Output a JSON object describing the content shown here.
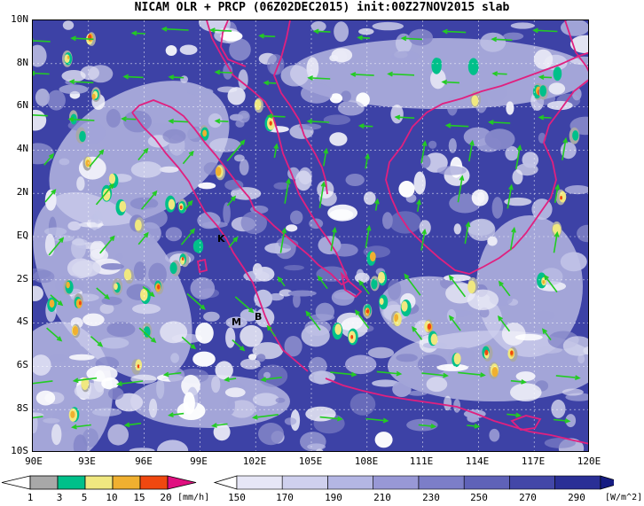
{
  "title": "NICAM OLR + PRCP (06Z02DEC2015) init:00Z27NOV2015 slab",
  "map": {
    "lon_range": [
      90,
      120
    ],
    "lat_range": [
      -10,
      10
    ],
    "lat_labels": [
      "10N",
      "8N",
      "6N",
      "4N",
      "2N",
      "EQ",
      "2S",
      "4S",
      "6S",
      "8S",
      "10S"
    ],
    "lon_labels": [
      "90E",
      "93E",
      "96E",
      "99E",
      "102E",
      "105E",
      "108E",
      "111E",
      "114E",
      "117E",
      "120E"
    ],
    "place_markers": [
      "K",
      "M",
      "B"
    ],
    "colors": {
      "coastline": "#e0207f",
      "wind_vectors": "#22cc22",
      "background_cloud": "#ffffff"
    }
  },
  "precip_legend": {
    "labels": [
      "1",
      "3",
      "5",
      "10",
      "15",
      "20"
    ],
    "unit": "[mm/h]",
    "colors": [
      "#a8a8a8",
      "#00c08a",
      "#f0e880",
      "#f0b030",
      "#f04810",
      "#e01080"
    ]
  },
  "olr_legend": {
    "labels": [
      "150",
      "170",
      "190",
      "210",
      "230",
      "250",
      "270",
      "290"
    ],
    "unit": "[W/m^2]",
    "colors": [
      "#ffffff",
      "#e6e6f6",
      "#cfd0ee",
      "#b4b6e4",
      "#9898d6",
      "#7c7ec8",
      "#5f62b8",
      "#4347a8",
      "#2a2f96",
      "#161c82"
    ]
  }
}
